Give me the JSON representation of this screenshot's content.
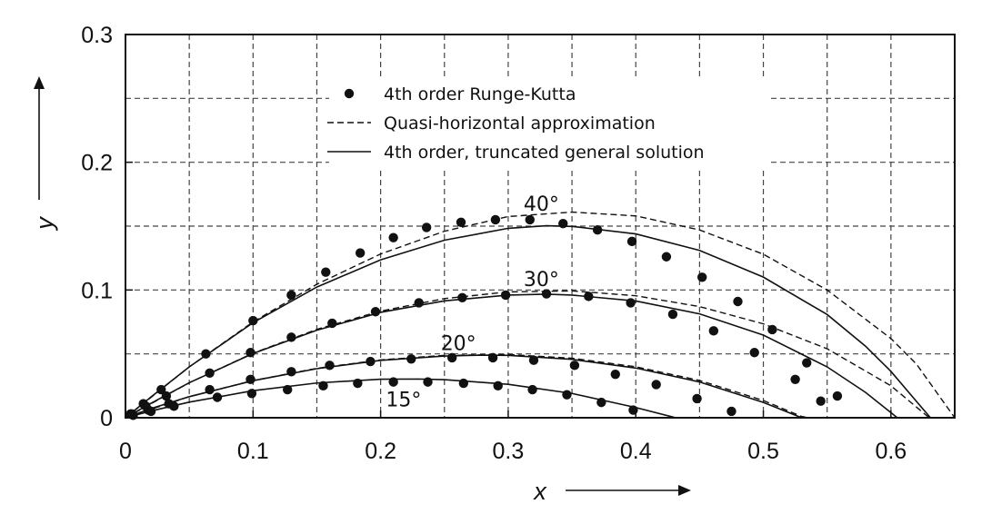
{
  "chart_data": {
    "type": "line",
    "xlabel": "x",
    "ylabel": "y",
    "xlim": [
      0,
      0.65
    ],
    "ylim": [
      0,
      0.3
    ],
    "x_major_ticks": [
      "0",
      "0.1",
      "0.2",
      "0.3",
      "0.4",
      "0.5",
      "0.6"
    ],
    "y_major_ticks": [
      "0",
      "0.1",
      "0.2",
      "0.3"
    ],
    "x_major_values": [
      0,
      0.1,
      0.2,
      0.3,
      0.4,
      0.5,
      0.6
    ],
    "y_major_values": [
      0,
      0.1,
      0.2,
      0.3
    ],
    "x_grid": [
      0.05,
      0.1,
      0.15,
      0.2,
      0.25,
      0.3,
      0.35,
      0.4,
      0.45,
      0.5,
      0.55,
      0.6
    ],
    "y_grid": [
      0.05,
      0.1,
      0.15,
      0.2,
      0.25
    ],
    "grid": "dashed",
    "legend_position": "top-center",
    "legend": [
      {
        "label": "4th order Runge-Kutta",
        "style": "dots"
      },
      {
        "label": "Quasi-horizontal approximation",
        "style": "dashed"
      },
      {
        "label": "4th order, truncated general solution",
        "style": "solid"
      }
    ],
    "annotations": [
      {
        "text": "40°",
        "x": 0.326,
        "y": 0.162
      },
      {
        "text": "30°",
        "x": 0.326,
        "y": 0.103
      },
      {
        "text": "20°",
        "x": 0.261,
        "y": 0.053
      },
      {
        "text": "15°",
        "x": 0.218,
        "y": 0.009
      }
    ],
    "series": [
      {
        "angle": "40°",
        "solid": [
          [
            0,
            0
          ],
          [
            0.02,
            0.0163
          ],
          [
            0.05,
            0.0398
          ],
          [
            0.1,
            0.0744
          ],
          [
            0.15,
            0.1023
          ],
          [
            0.2,
            0.1236
          ],
          [
            0.25,
            0.139
          ],
          [
            0.3,
            0.1483
          ],
          [
            0.33,
            0.1503
          ],
          [
            0.35,
            0.1498
          ],
          [
            0.4,
            0.1439
          ],
          [
            0.45,
            0.131
          ],
          [
            0.5,
            0.1101
          ],
          [
            0.55,
            0.0808
          ],
          [
            0.58,
            0.0561
          ],
          [
            0.6,
            0.0363
          ],
          [
            0.62,
            0.0128
          ],
          [
            0.631,
            0
          ]
        ],
        "dashed": [
          [
            0,
            0
          ],
          [
            0.05,
            0.0398
          ],
          [
            0.1,
            0.075
          ],
          [
            0.15,
            0.1045
          ],
          [
            0.2,
            0.1282
          ],
          [
            0.25,
            0.146
          ],
          [
            0.3,
            0.1575
          ],
          [
            0.35,
            0.161
          ],
          [
            0.4,
            0.158
          ],
          [
            0.45,
            0.147
          ],
          [
            0.5,
            0.128
          ],
          [
            0.55,
            0.1
          ],
          [
            0.6,
            0.062
          ],
          [
            0.62,
            0.042
          ],
          [
            0.65,
            0.0
          ]
        ],
        "dots": [
          [
            0.004,
            0.003
          ],
          [
            0.014,
            0.011
          ],
          [
            0.028,
            0.022
          ],
          [
            0.063,
            0.05
          ],
          [
            0.1,
            0.076
          ],
          [
            0.13,
            0.096
          ],
          [
            0.157,
            0.114
          ],
          [
            0.184,
            0.129
          ],
          [
            0.21,
            0.141
          ],
          [
            0.236,
            0.149
          ],
          [
            0.263,
            0.153
          ],
          [
            0.29,
            0.155
          ],
          [
            0.317,
            0.155
          ],
          [
            0.343,
            0.152
          ],
          [
            0.37,
            0.147
          ],
          [
            0.397,
            0.138
          ],
          [
            0.424,
            0.126
          ],
          [
            0.452,
            0.11
          ],
          [
            0.48,
            0.091
          ],
          [
            0.507,
            0.069
          ],
          [
            0.534,
            0.043
          ],
          [
            0.558,
            0.017
          ]
        ]
      },
      {
        "angle": "30°",
        "solid": [
          [
            0,
            0
          ],
          [
            0.02,
            0.0113
          ],
          [
            0.05,
            0.0274
          ],
          [
            0.1,
            0.0503
          ],
          [
            0.15,
            0.0685
          ],
          [
            0.2,
            0.0825
          ],
          [
            0.25,
            0.0915
          ],
          [
            0.3,
            0.096
          ],
          [
            0.33,
            0.0967
          ],
          [
            0.35,
            0.096
          ],
          [
            0.4,
            0.0914
          ],
          [
            0.45,
            0.0813
          ],
          [
            0.5,
            0.0647
          ],
          [
            0.55,
            0.0398
          ],
          [
            0.58,
            0.0199
          ],
          [
            0.6,
            0.004
          ],
          [
            0.605,
            0
          ]
        ],
        "dashed": [
          [
            0,
            0
          ],
          [
            0.05,
            0.0274
          ],
          [
            0.1,
            0.0505
          ],
          [
            0.15,
            0.0692
          ],
          [
            0.2,
            0.0835
          ],
          [
            0.25,
            0.0933
          ],
          [
            0.3,
            0.0985
          ],
          [
            0.35,
            0.0993
          ],
          [
            0.4,
            0.0955
          ],
          [
            0.45,
            0.087
          ],
          [
            0.5,
            0.0735
          ],
          [
            0.55,
            0.054
          ],
          [
            0.6,
            0.025
          ],
          [
            0.63,
            0.0
          ]
        ],
        "dots": [
          [
            0.005,
            0.003
          ],
          [
            0.016,
            0.009
          ],
          [
            0.032,
            0.017
          ],
          [
            0.066,
            0.035
          ],
          [
            0.098,
            0.051
          ],
          [
            0.13,
            0.063
          ],
          [
            0.162,
            0.074
          ],
          [
            0.196,
            0.083
          ],
          [
            0.23,
            0.09
          ],
          [
            0.264,
            0.094
          ],
          [
            0.298,
            0.096
          ],
          [
            0.33,
            0.097
          ],
          [
            0.363,
            0.095
          ],
          [
            0.396,
            0.09
          ],
          [
            0.429,
            0.081
          ],
          [
            0.461,
            0.068
          ],
          [
            0.493,
            0.051
          ],
          [
            0.525,
            0.03
          ],
          [
            0.545,
            0.013
          ]
        ]
      },
      {
        "angle": "20°",
        "solid": [
          [
            0,
            0
          ],
          [
            0.02,
            0.0072
          ],
          [
            0.05,
            0.0165
          ],
          [
            0.1,
            0.029
          ],
          [
            0.15,
            0.0384
          ],
          [
            0.2,
            0.0449
          ],
          [
            0.25,
            0.0483
          ],
          [
            0.28,
            0.049
          ],
          [
            0.3,
            0.0488
          ],
          [
            0.35,
            0.0457
          ],
          [
            0.4,
            0.0389
          ],
          [
            0.45,
            0.028
          ],
          [
            0.5,
            0.012
          ],
          [
            0.52,
            0.004
          ],
          [
            0.53,
            0
          ]
        ],
        "dashed": [
          [
            0,
            0
          ],
          [
            0.05,
            0.0165
          ],
          [
            0.1,
            0.0291
          ],
          [
            0.15,
            0.0387
          ],
          [
            0.2,
            0.0453
          ],
          [
            0.25,
            0.0488
          ],
          [
            0.3,
            0.0495
          ],
          [
            0.35,
            0.0466
          ],
          [
            0.4,
            0.0399
          ],
          [
            0.45,
            0.0292
          ],
          [
            0.5,
            0.0135
          ],
          [
            0.53,
            0.001
          ],
          [
            0.535,
            0
          ]
        ],
        "dots": [
          [
            0.006,
            0.002
          ],
          [
            0.018,
            0.006
          ],
          [
            0.034,
            0.011
          ],
          [
            0.066,
            0.022
          ],
          [
            0.098,
            0.03
          ],
          [
            0.13,
            0.036
          ],
          [
            0.16,
            0.041
          ],
          [
            0.192,
            0.044
          ],
          [
            0.224,
            0.046
          ],
          [
            0.256,
            0.047
          ],
          [
            0.288,
            0.047
          ],
          [
            0.32,
            0.045
          ],
          [
            0.352,
            0.041
          ],
          [
            0.384,
            0.034
          ],
          [
            0.416,
            0.026
          ],
          [
            0.448,
            0.015
          ],
          [
            0.475,
            0.005
          ]
        ]
      },
      {
        "angle": "15°",
        "solid": [
          [
            0,
            0
          ],
          [
            0.02,
            0.0053
          ],
          [
            0.05,
            0.0122
          ],
          [
            0.1,
            0.0212
          ],
          [
            0.15,
            0.0272
          ],
          [
            0.2,
            0.0302
          ],
          [
            0.23,
            0.0303
          ],
          [
            0.25,
            0.0298
          ],
          [
            0.3,
            0.0262
          ],
          [
            0.35,
            0.019
          ],
          [
            0.4,
            0.008
          ],
          [
            0.43,
            0.0003
          ],
          [
            0.432,
            0
          ]
        ],
        "dots": [
          [
            0.006,
            0.002
          ],
          [
            0.02,
            0.005
          ],
          [
            0.038,
            0.009
          ],
          [
            0.072,
            0.016
          ],
          [
            0.099,
            0.019
          ],
          [
            0.127,
            0.022
          ],
          [
            0.155,
            0.025
          ],
          [
            0.182,
            0.027
          ],
          [
            0.21,
            0.028
          ],
          [
            0.237,
            0.028
          ],
          [
            0.265,
            0.027
          ],
          [
            0.292,
            0.025
          ],
          [
            0.319,
            0.022
          ],
          [
            0.346,
            0.018
          ],
          [
            0.373,
            0.012
          ],
          [
            0.398,
            0.006
          ]
        ]
      }
    ]
  }
}
